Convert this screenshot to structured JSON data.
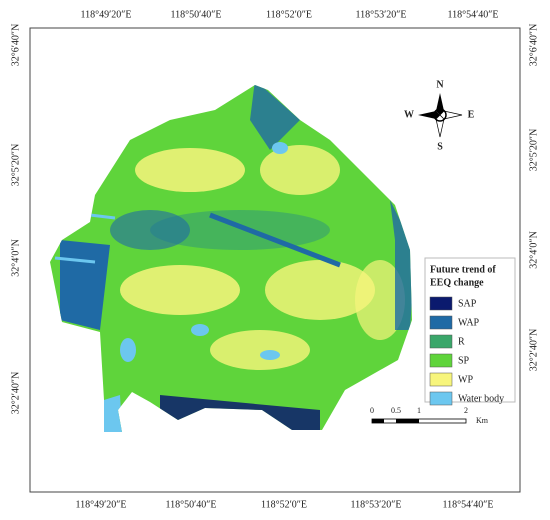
{
  "map": {
    "top_labels": [
      "118°49′20″E",
      "118°50′40″E",
      "118°52′0″E",
      "118°53′20″E",
      "118°54′40″E"
    ],
    "bottom_labels": [
      "118°49′20″E",
      "118°50′40″E",
      "118°52′0″E",
      "118°53′20″E",
      "118°54′40″E"
    ],
    "left_labels": [
      "32°6′40″N",
      "32°5′20″N",
      "32°4′0″N",
      "32°2′40″N"
    ],
    "right_labels": [
      "32°6′40″N",
      "32°5′20″N",
      "32°4′0″N",
      "32°2′40″N"
    ],
    "compass": {
      "n": "N",
      "s": "S",
      "e": "E",
      "w": "W"
    },
    "legend": {
      "title": [
        "Future trend of",
        "EEQ change"
      ],
      "items": [
        {
          "label": "SAP",
          "color": "#0b1a6e"
        },
        {
          "label": "WAP",
          "color": "#1f6aa5"
        },
        {
          "label": "R",
          "color": "#3aa66a"
        },
        {
          "label": "SP",
          "color": "#5fd43b"
        },
        {
          "label": "WP",
          "color": "#f7f57c"
        },
        {
          "label": "Water body",
          "color": "#6cc7ef"
        }
      ]
    },
    "scale_bar": {
      "labels": [
        "0",
        "0.5",
        "1",
        "2"
      ],
      "unit": "Km"
    }
  }
}
